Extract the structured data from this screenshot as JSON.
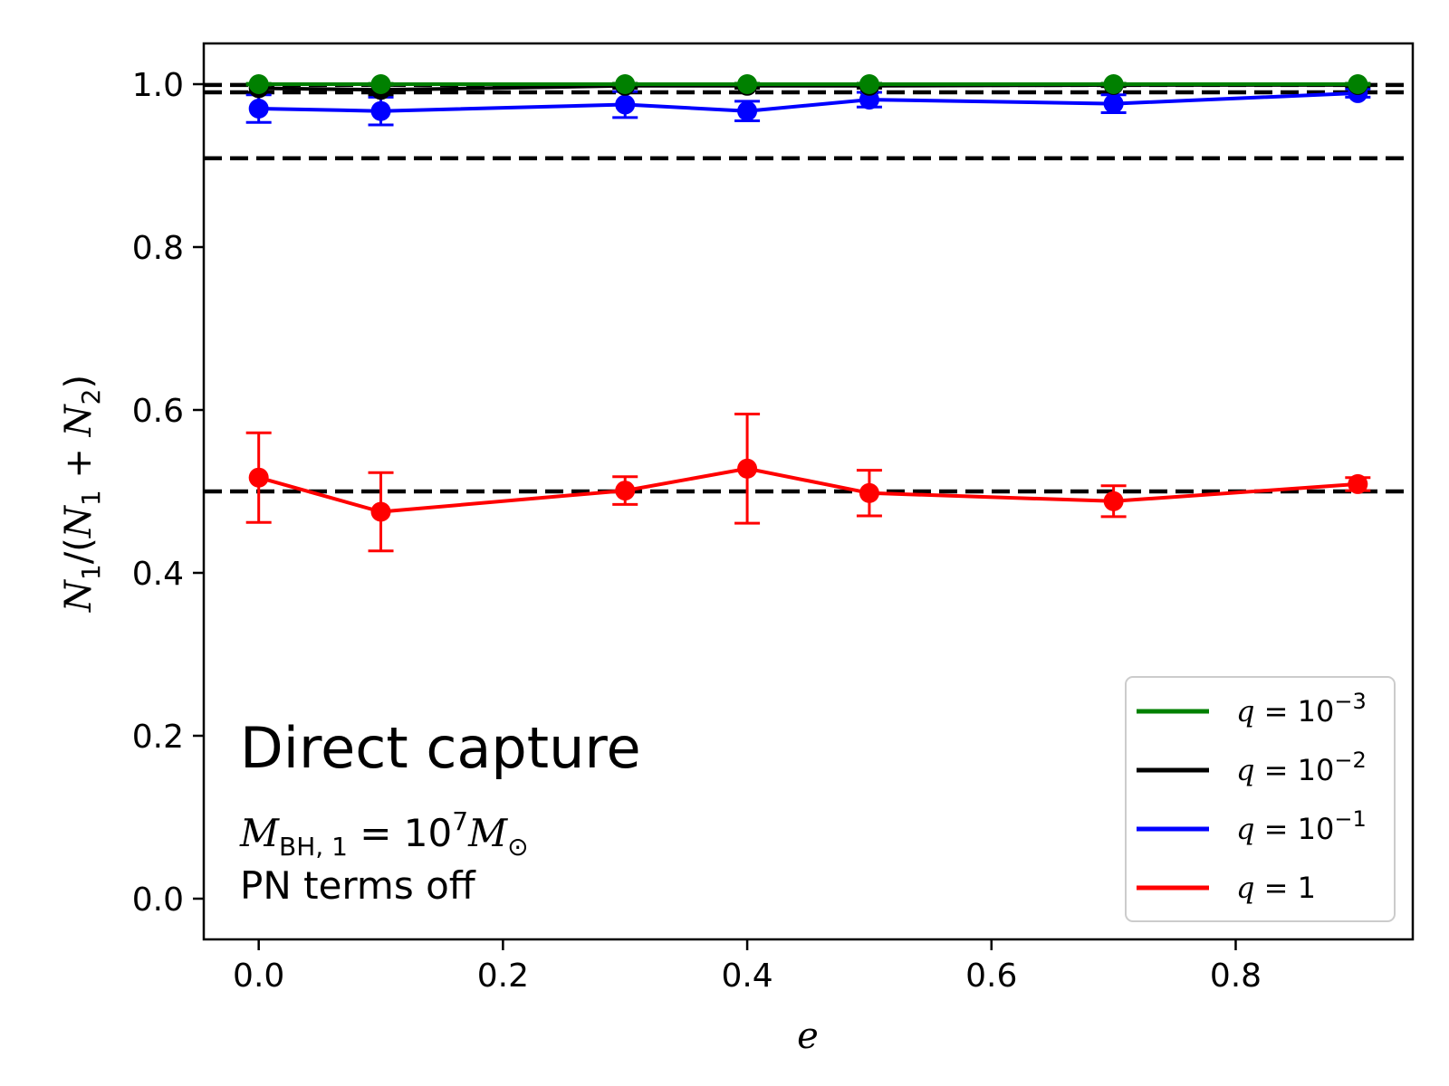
{
  "chart_data": {
    "type": "line",
    "xlabel": "e",
    "ylabel": "N1/(N1 + N2)",
    "xlim": [
      -0.045,
      0.945
    ],
    "ylim": [
      -0.05,
      1.05
    ],
    "x_ticks": [
      "0.0",
      "0.2",
      "0.4",
      "0.6",
      "0.8"
    ],
    "y_ticks": [
      "0.0",
      "0.2",
      "0.4",
      "0.6",
      "0.8",
      "1.0"
    ],
    "grid": false,
    "legend_position": "lower-right",
    "reference_lines": [
      0.5,
      0.909,
      0.99,
      0.999
    ],
    "x": [
      0.0,
      0.1,
      0.3,
      0.4,
      0.5,
      0.7,
      0.9
    ],
    "series": [
      {
        "name": "q = 10^-3",
        "color": "#008000",
        "values": [
          1.0,
          1.0,
          1.0,
          1.0,
          1.0,
          1.0,
          1.0
        ],
        "err": [
          0.001,
          0.001,
          0.001,
          0.001,
          0.001,
          0.001,
          0.001
        ]
      },
      {
        "name": "q = 10^-2",
        "color": "#000000",
        "values": [
          0.995,
          0.993,
          0.998,
          0.998,
          0.998,
          0.999,
          0.999
        ],
        "err": [
          0.005,
          0.006,
          0.003,
          0.003,
          0.003,
          0.002,
          0.002
        ]
      },
      {
        "name": "q = 10^-1",
        "color": "#0000ff",
        "values": [
          0.97,
          0.967,
          0.975,
          0.967,
          0.981,
          0.976,
          0.989
        ],
        "err": [
          0.017,
          0.017,
          0.016,
          0.012,
          0.009,
          0.011,
          0.005
        ]
      },
      {
        "name": "q = 1",
        "color": "#ff0000",
        "values": [
          0.517,
          0.475,
          0.501,
          0.528,
          0.498,
          0.488,
          0.509
        ],
        "err": [
          0.055,
          0.048,
          0.017,
          0.067,
          0.028,
          0.019,
          0.008
        ]
      }
    ]
  },
  "annotations": {
    "title": "Direct capture",
    "mass": "M",
    "mass_sub": "BH, 1",
    "mass_eq": " = 10",
    "mass_exp": "7",
    "mass_unit": "M",
    "mass_unit_sub": "⊙",
    "pn": "PN terms off"
  },
  "ylabel_parts": {
    "n": "N",
    "one": "1",
    "open": "/(",
    "n1": "N",
    "one2": "1",
    "plus": " + ",
    "n2": "N",
    "two": "2",
    "close": ")"
  },
  "legend": {
    "items": [
      {
        "q": "q",
        "eq": " = 10",
        "exp": "−3"
      },
      {
        "q": "q",
        "eq": " = 10",
        "exp": "−2"
      },
      {
        "q": "q",
        "eq": " = 10",
        "exp": "−1"
      },
      {
        "q": "q",
        "eq": " = 1",
        "exp": ""
      }
    ]
  }
}
